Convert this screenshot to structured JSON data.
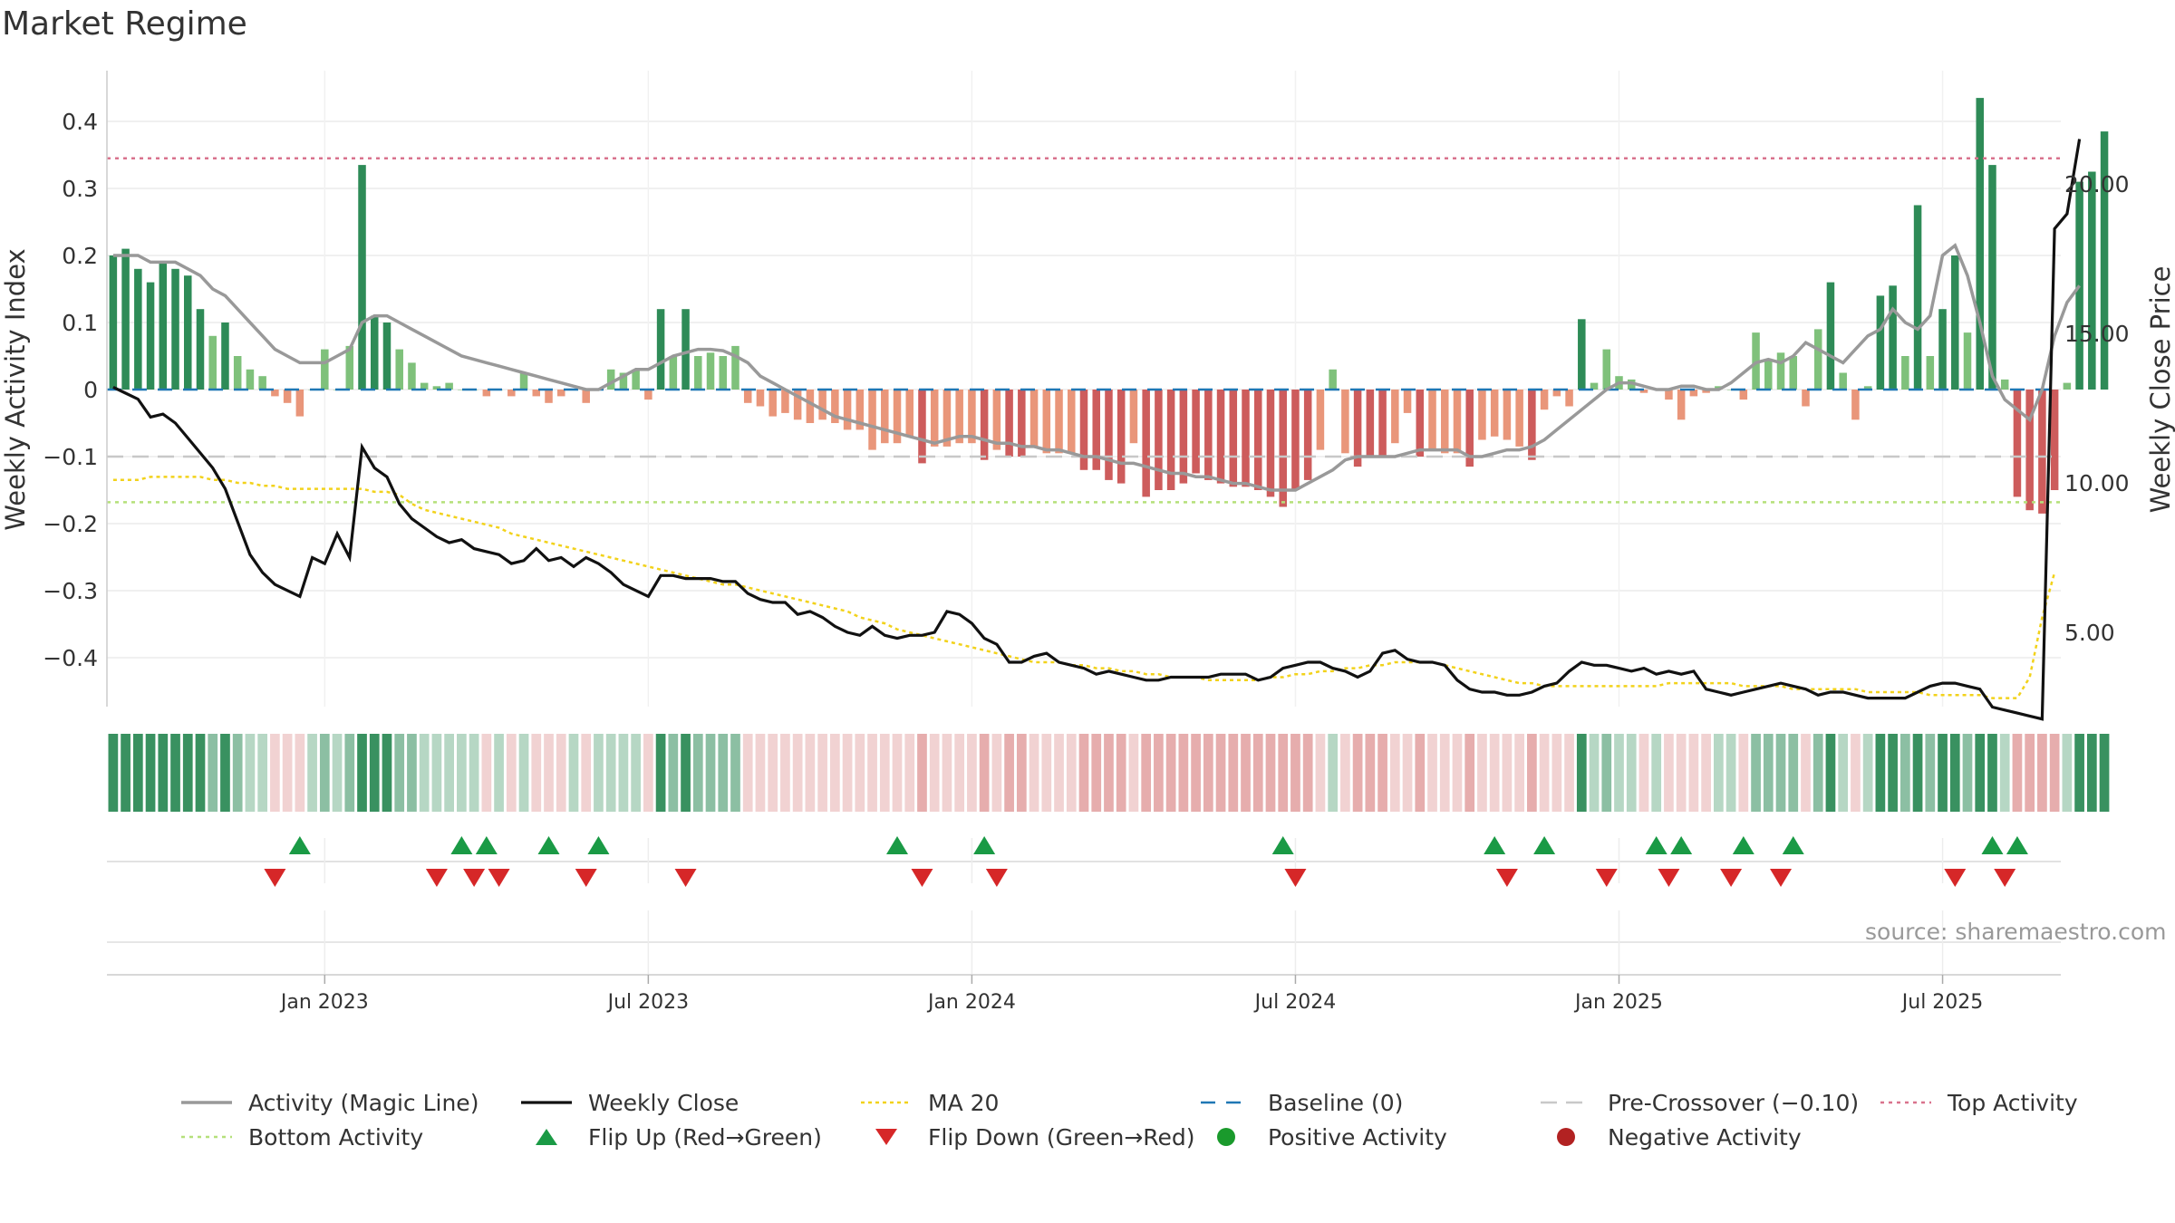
{
  "title": "Market Regime",
  "source": "source: sharemaestro.com",
  "colors": {
    "strong_green": "#2e8b57",
    "light_green": "#7fc17b",
    "strong_red": "#cd5c5c",
    "light_red": "#e9967a",
    "magic_line": "#999999",
    "close_line": "#111111",
    "ma20": "#f2d21b",
    "baseline": "#1f77b4",
    "pre_crossover": "#c8c8c8",
    "top_activity": "#d9738d",
    "bottom_activity": "#b5e07a",
    "flip_up": "#1a9a45",
    "flip_down": "#d62728",
    "positive_dot": "#1a9a2c",
    "negative_dot": "#b22222"
  },
  "chart_data": {
    "type": "bar",
    "xlabel": "",
    "ylabel": "Weekly Activity Index",
    "y2label": "Weekly Close Price",
    "ylim": [
      -0.47,
      0.47
    ],
    "y2lim": [
      1.0,
      22.5
    ],
    "yticks": [
      0.4,
      0.3,
      0.2,
      0.1,
      0,
      -0.1,
      -0.2,
      -0.3,
      -0.4
    ],
    "ytick_labels": [
      "0.4",
      "0.3",
      "0.2",
      "0.1",
      "0",
      "−0.1",
      "−0.2",
      "−0.3",
      "−0.4"
    ],
    "y2ticks": [
      20,
      15,
      10,
      5
    ],
    "y2tick_labels": [
      "20.00",
      "15.00",
      "10.00",
      "5.00"
    ],
    "x_tick_labels": [
      "Jan 2023",
      "Jul 2023",
      "Jan 2024",
      "Jul 2024",
      "Jan 2025",
      "Jul 2025"
    ],
    "x_tick_weeks": [
      17,
      43,
      69,
      95,
      121,
      147
    ],
    "n_weeks": 157,
    "reference_lines": {
      "baseline": 0,
      "pre_crossover": -0.1,
      "top_activity": 0.345,
      "bottom_activity": -0.168
    },
    "grid": true,
    "legend_position": "bottom",
    "activity": [
      0.2,
      0.21,
      0.18,
      0.16,
      0.19,
      0.18,
      0.17,
      0.12,
      0.08,
      0.1,
      0.05,
      0.03,
      0.02,
      -0.01,
      -0.02,
      -0.04,
      0.0,
      0.06,
      0.0,
      0.065,
      0.335,
      0.11,
      0.1,
      0.06,
      0.04,
      0.01,
      0.005,
      0.01,
      0.0,
      0.0,
      -0.01,
      0.0,
      -0.01,
      0.025,
      -0.01,
      -0.02,
      -0.01,
      0.0,
      -0.02,
      0.0,
      0.03,
      0.025,
      0.03,
      -0.015,
      0.12,
      0.05,
      0.12,
      0.05,
      0.055,
      0.05,
      0.065,
      -0.02,
      -0.025,
      -0.04,
      -0.035,
      -0.045,
      -0.05,
      -0.045,
      -0.05,
      -0.06,
      -0.06,
      -0.09,
      -0.08,
      -0.08,
      -0.07,
      -0.11,
      -0.085,
      -0.085,
      -0.08,
      -0.08,
      -0.105,
      -0.09,
      -0.1,
      -0.1,
      -0.085,
      -0.095,
      -0.095,
      -0.095,
      -0.12,
      -0.12,
      -0.135,
      -0.14,
      -0.08,
      -0.16,
      -0.15,
      -0.15,
      -0.14,
      -0.125,
      -0.135,
      -0.14,
      -0.145,
      -0.145,
      -0.15,
      -0.16,
      -0.175,
      -0.15,
      -0.135,
      -0.09,
      0.03,
      -0.095,
      -0.115,
      -0.1,
      -0.1,
      -0.08,
      -0.035,
      -0.1,
      -0.09,
      -0.095,
      -0.095,
      -0.115,
      -0.075,
      -0.07,
      -0.075,
      -0.085,
      -0.105,
      -0.03,
      -0.01,
      -0.025,
      0.105,
      0.01,
      0.06,
      0.02,
      0.015,
      -0.005,
      0.0,
      -0.015,
      -0.045,
      -0.01,
      -0.005,
      0.005,
      0.0,
      -0.015,
      0.085,
      0.045,
      0.055,
      0.05,
      -0.025,
      0.09,
      0.16,
      0.025,
      -0.045,
      0.005,
      0.14,
      0.155,
      0.05,
      0.275,
      0.05,
      0.12,
      0.2,
      0.085,
      0.435,
      0.335,
      0.015,
      -0.16,
      -0.18,
      -0.185,
      -0.15,
      0.01,
      0.31,
      0.325,
      0.385
    ],
    "series": [
      {
        "name": "Activity (Magic Line)",
        "values": [
          0.2,
          0.2,
          0.2,
          0.19,
          0.19,
          0.19,
          0.18,
          0.17,
          0.15,
          0.14,
          0.12,
          0.1,
          0.08,
          0.06,
          0.05,
          0.04,
          0.04,
          0.04,
          0.05,
          0.06,
          0.1,
          0.11,
          0.11,
          0.1,
          0.09,
          0.08,
          0.07,
          0.06,
          0.05,
          0.045,
          0.04,
          0.035,
          0.03,
          0.025,
          0.02,
          0.015,
          0.01,
          0.005,
          0.0,
          0.0,
          0.01,
          0.02,
          0.03,
          0.03,
          0.04,
          0.05,
          0.055,
          0.06,
          0.06,
          0.058,
          0.05,
          0.04,
          0.02,
          0.01,
          0.0,
          -0.01,
          -0.02,
          -0.03,
          -0.04,
          -0.045,
          -0.05,
          -0.055,
          -0.06,
          -0.065,
          -0.07,
          -0.075,
          -0.08,
          -0.075,
          -0.07,
          -0.07,
          -0.075,
          -0.08,
          -0.08,
          -0.085,
          -0.085,
          -0.09,
          -0.09,
          -0.095,
          -0.1,
          -0.1,
          -0.105,
          -0.11,
          -0.11,
          -0.115,
          -0.12,
          -0.125,
          -0.125,
          -0.13,
          -0.13,
          -0.135,
          -0.14,
          -0.14,
          -0.145,
          -0.15,
          -0.15,
          -0.15,
          -0.14,
          -0.13,
          -0.12,
          -0.105,
          -0.1,
          -0.1,
          -0.1,
          -0.1,
          -0.095,
          -0.09,
          -0.09,
          -0.09,
          -0.09,
          -0.1,
          -0.1,
          -0.095,
          -0.09,
          -0.09,
          -0.085,
          -0.075,
          -0.06,
          -0.045,
          -0.03,
          -0.015,
          0.0,
          0.01,
          0.01,
          0.005,
          0.0,
          0.0,
          0.005,
          0.005,
          0.0,
          0.0,
          0.01,
          0.025,
          0.04,
          0.045,
          0.04,
          0.05,
          0.07,
          0.06,
          0.05,
          0.04,
          0.06,
          0.08,
          0.09,
          0.12,
          0.1,
          0.09,
          0.11,
          0.2,
          0.215,
          0.17,
          0.1,
          0.02,
          -0.015,
          -0.03,
          -0.045,
          0.0,
          0.08,
          0.13,
          0.155
        ]
      },
      {
        "name": "Weekly Close",
        "axis": "right",
        "values": [
          13.2,
          13.0,
          12.8,
          12.2,
          12.3,
          12.0,
          11.5,
          11.0,
          10.5,
          9.8,
          8.7,
          7.6,
          7.0,
          6.6,
          6.4,
          6.2,
          7.5,
          7.3,
          8.3,
          7.5,
          11.2,
          10.5,
          10.2,
          9.3,
          8.8,
          8.5,
          8.2,
          8.0,
          8.1,
          7.8,
          7.7,
          7.6,
          7.3,
          7.4,
          7.8,
          7.4,
          7.5,
          7.2,
          7.5,
          7.3,
          7.0,
          6.6,
          6.4,
          6.2,
          6.9,
          6.9,
          6.8,
          6.8,
          6.8,
          6.7,
          6.7,
          6.3,
          6.1,
          6.0,
          6.0,
          5.6,
          5.7,
          5.5,
          5.2,
          5.0,
          4.9,
          5.2,
          4.9,
          4.8,
          4.9,
          4.9,
          5.0,
          5.7,
          5.6,
          5.3,
          4.8,
          4.6,
          4.0,
          4.0,
          4.2,
          4.3,
          4.0,
          3.9,
          3.8,
          3.6,
          3.7,
          3.6,
          3.5,
          3.4,
          3.4,
          3.5,
          3.5,
          3.5,
          3.5,
          3.6,
          3.6,
          3.6,
          3.4,
          3.5,
          3.8,
          3.9,
          4.0,
          4.0,
          3.8,
          3.7,
          3.5,
          3.7,
          4.3,
          4.4,
          4.1,
          4.0,
          4.0,
          3.9,
          3.4,
          3.1,
          3.0,
          3.0,
          2.9,
          2.9,
          3.0,
          3.2,
          3.3,
          3.7,
          4.0,
          3.9,
          3.9,
          3.8,
          3.7,
          3.8,
          3.6,
          3.7,
          3.6,
          3.7,
          3.1,
          3.0,
          2.9,
          3.0,
          3.1,
          3.2,
          3.3,
          3.2,
          3.1,
          2.9,
          3.0,
          3.0,
          2.9,
          2.8,
          2.8,
          2.8,
          2.8,
          3.0,
          3.2,
          3.3,
          3.3,
          3.2,
          3.1,
          2.5,
          2.4,
          2.3,
          2.2,
          2.1,
          18.5,
          19.0,
          21.5
        ]
      },
      {
        "name": "MA 20",
        "axis": "right",
        "values": [
          10.1,
          10.1,
          10.1,
          10.2,
          10.2,
          10.2,
          10.2,
          10.2,
          10.1,
          10.1,
          10.0,
          10.0,
          9.9,
          9.9,
          9.8,
          9.8,
          9.8,
          9.8,
          9.8,
          9.8,
          9.8,
          9.7,
          9.7,
          9.6,
          9.3,
          9.1,
          9.0,
          8.9,
          8.8,
          8.7,
          8.6,
          8.5,
          8.3,
          8.2,
          8.1,
          8.0,
          7.9,
          7.8,
          7.7,
          7.6,
          7.5,
          7.4,
          7.3,
          7.2,
          7.1,
          7.0,
          6.9,
          6.8,
          6.7,
          6.6,
          6.6,
          6.5,
          6.4,
          6.3,
          6.2,
          6.1,
          6.0,
          5.9,
          5.8,
          5.7,
          5.5,
          5.4,
          5.3,
          5.1,
          5.0,
          4.9,
          4.8,
          4.7,
          4.6,
          4.5,
          4.4,
          4.3,
          4.2,
          4.1,
          4.0,
          4.0,
          4.0,
          3.9,
          3.9,
          3.8,
          3.8,
          3.7,
          3.7,
          3.6,
          3.6,
          3.5,
          3.5,
          3.5,
          3.4,
          3.4,
          3.4,
          3.4,
          3.4,
          3.5,
          3.5,
          3.6,
          3.6,
          3.7,
          3.7,
          3.8,
          3.8,
          3.9,
          3.9,
          4.0,
          4.0,
          4.0,
          4.0,
          3.9,
          3.8,
          3.7,
          3.6,
          3.5,
          3.4,
          3.3,
          3.3,
          3.2,
          3.2,
          3.2,
          3.2,
          3.2,
          3.2,
          3.2,
          3.2,
          3.2,
          3.2,
          3.3,
          3.3,
          3.3,
          3.3,
          3.3,
          3.3,
          3.2,
          3.2,
          3.2,
          3.2,
          3.1,
          3.1,
          3.1,
          3.1,
          3.1,
          3.1,
          3.0,
          3.0,
          3.0,
          3.0,
          3.0,
          2.9,
          2.9,
          2.9,
          2.9,
          2.9,
          2.8,
          2.8,
          2.8,
          3.5,
          5.5,
          7.0
        ]
      }
    ],
    "flip_up_weeks": [
      15,
      28,
      30,
      35,
      39,
      63,
      70,
      94,
      111,
      115,
      124,
      126,
      131,
      135,
      151,
      153
    ],
    "flip_down_weeks": [
      13,
      26,
      29,
      31,
      38,
      46,
      65,
      71,
      95,
      112,
      120,
      125,
      130,
      134,
      148,
      152
    ]
  },
  "legend": {
    "items": [
      {
        "label": "Activity (Magic Line)",
        "icon": "gray-line-icon"
      },
      {
        "label": "Weekly Close",
        "icon": "black-line-icon"
      },
      {
        "label": "MA 20",
        "icon": "yellow-dotted-line-icon"
      },
      {
        "label": "Baseline (0)",
        "icon": "blue-dashed-line-icon"
      },
      {
        "label": "Pre-Crossover (−0.10)",
        "icon": "gray-dashed-line-icon"
      },
      {
        "label": "Top Activity",
        "icon": "pink-dotted-line-icon"
      },
      {
        "label": "Bottom Activity",
        "icon": "green-dotted-line-icon"
      },
      {
        "label": "Flip Up (Red→Green)",
        "icon": "green-triangle-up-icon"
      },
      {
        "label": "Flip Down (Green→Red)",
        "icon": "red-triangle-down-icon"
      },
      {
        "label": "Positive Activity",
        "icon": "green-dot-icon"
      },
      {
        "label": "Negative Activity",
        "icon": "red-dot-icon"
      }
    ]
  }
}
